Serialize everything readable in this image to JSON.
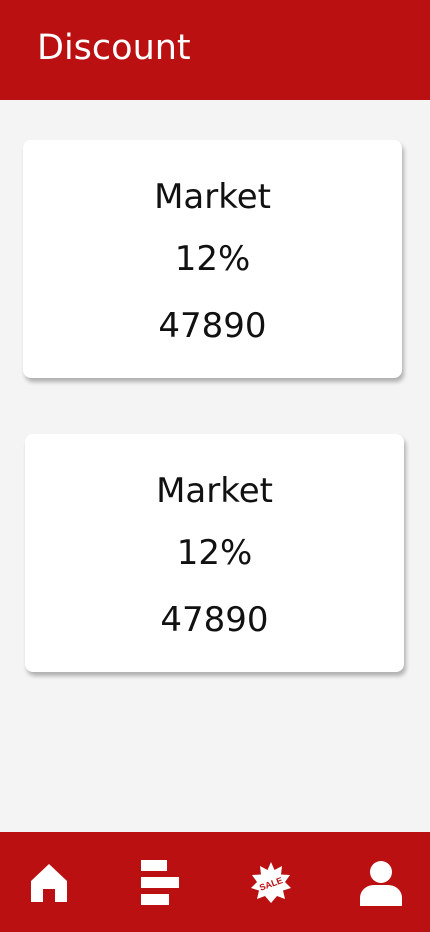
{
  "header": {
    "title": "Discount"
  },
  "cards": [
    {
      "name": "Market",
      "percent": "12%",
      "value": "47890"
    },
    {
      "name": "Market",
      "percent": "12%",
      "value": "47890"
    }
  ],
  "navbar": {
    "items": [
      {
        "icon": "home-icon"
      },
      {
        "icon": "bar-chart-icon"
      },
      {
        "icon": "sale-badge-icon",
        "label": "SALE"
      },
      {
        "icon": "user-icon"
      }
    ]
  },
  "colors": {
    "brand": "#bb1011",
    "background": "#f4f4f4",
    "card": "#ffffff",
    "text": "#111111"
  }
}
